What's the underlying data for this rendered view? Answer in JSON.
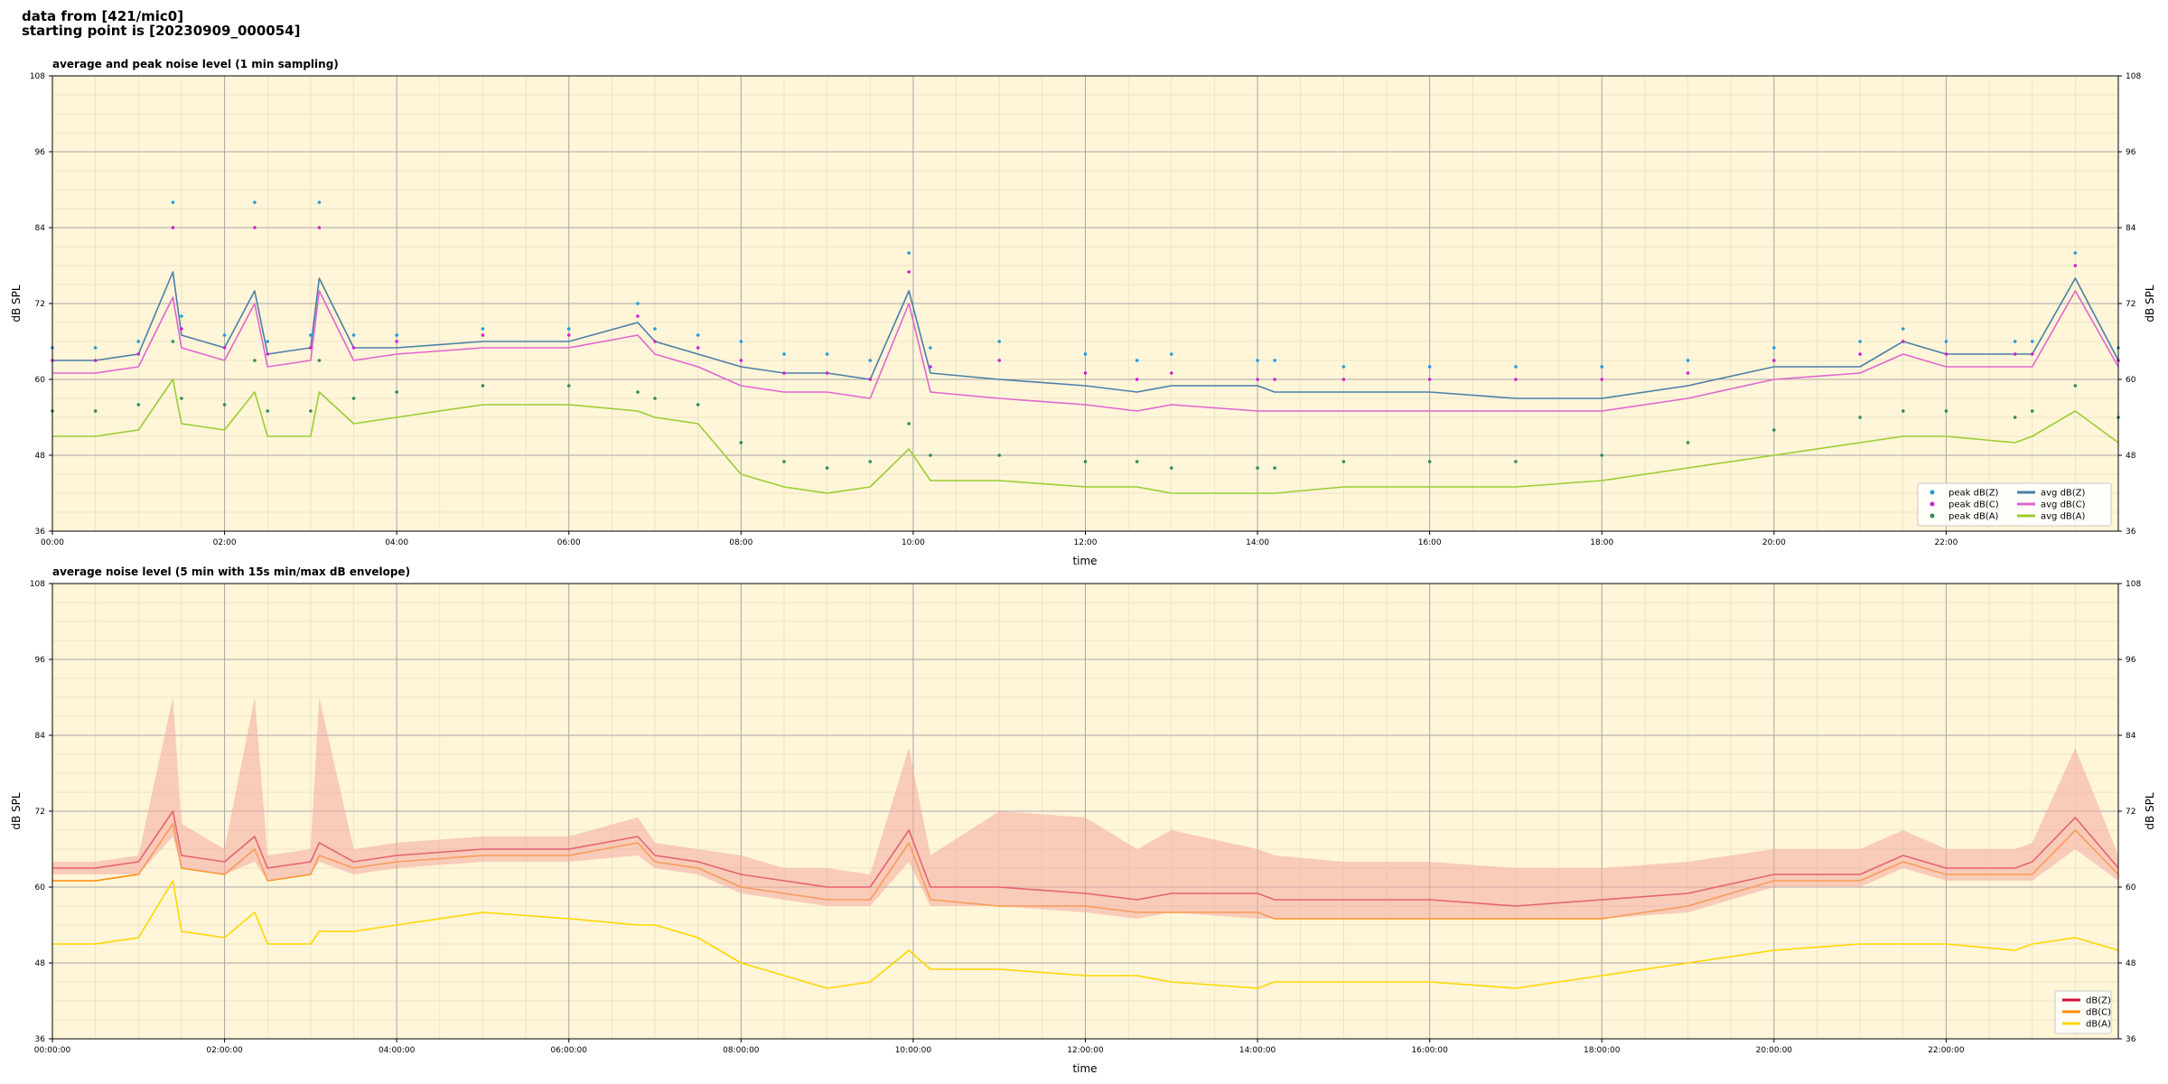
{
  "header": {
    "source_line": "data from [421/mic0]",
    "start_line": "starting point is [20230909_000054]"
  },
  "chart_data": [
    {
      "type": "line",
      "title": "average and peak noise level (1 min sampling)",
      "xlabel": "time",
      "ylabel": "dB SPL",
      "xlim": [
        0,
        24
      ],
      "ylim": [
        36,
        108
      ],
      "x_ticks": [
        0,
        2,
        4,
        6,
        8,
        10,
        12,
        14,
        16,
        18,
        20,
        22
      ],
      "x_ticklabels": [
        "00:00",
        "02:00",
        "04:00",
        "06:00",
        "08:00",
        "10:00",
        "12:00",
        "14:00",
        "16:00",
        "18:00",
        "20:00",
        "22:00"
      ],
      "y_ticks": [
        36,
        48,
        60,
        72,
        84,
        96,
        108
      ],
      "grid": true,
      "background": "#fff5d8",
      "legend_position": "bottom-right",
      "x": [
        0.0,
        0.5,
        1.0,
        1.4,
        1.5,
        2.0,
        2.35,
        2.5,
        3.0,
        3.1,
        3.5,
        4.0,
        5.0,
        6.0,
        6.8,
        7.0,
        7.5,
        8.0,
        8.5,
        9.0,
        9.5,
        9.95,
        10.2,
        11.0,
        12.0,
        12.6,
        13.0,
        14.0,
        14.2,
        15.0,
        16.0,
        17.0,
        18.0,
        19.0,
        20.0,
        21.0,
        21.5,
        22.0,
        22.8,
        23.0,
        23.5,
        24.0
      ],
      "series": [
        {
          "name": "avg dB(Z)",
          "kind": "line",
          "color": "#4a7fa8",
          "values": [
            63,
            63,
            64,
            77,
            67,
            65,
            74,
            64,
            65,
            76,
            65,
            65,
            66,
            66,
            69,
            66,
            64,
            62,
            61,
            61,
            60,
            74,
            61,
            60,
            59,
            58,
            59,
            59,
            58,
            58,
            58,
            57,
            57,
            59,
            62,
            62,
            66,
            64,
            64,
            64,
            76,
            63
          ]
        },
        {
          "name": "avg dB(C)",
          "kind": "line",
          "color": "#e066d0",
          "values": [
            61,
            61,
            62,
            73,
            65,
            63,
            72,
            62,
            63,
            74,
            63,
            64,
            65,
            65,
            67,
            64,
            62,
            59,
            58,
            58,
            57,
            72,
            58,
            57,
            56,
            55,
            56,
            55,
            55,
            55,
            55,
            55,
            55,
            57,
            60,
            61,
            64,
            62,
            62,
            62,
            74,
            62
          ]
        },
        {
          "name": "avg dB(A)",
          "kind": "line",
          "color": "#9acd32",
          "values": [
            51,
            51,
            52,
            60,
            53,
            52,
            58,
            51,
            51,
            58,
            53,
            54,
            56,
            56,
            55,
            54,
            53,
            45,
            43,
            42,
            43,
            49,
            44,
            44,
            43,
            43,
            42,
            42,
            42,
            43,
            43,
            43,
            44,
            46,
            48,
            50,
            51,
            51,
            50,
            51,
            55,
            50
          ]
        },
        {
          "name": "peak dB(Z)",
          "kind": "scatter",
          "color": "#1f9be0",
          "values": [
            65,
            65,
            66,
            88,
            70,
            67,
            88,
            66,
            67,
            88,
            67,
            67,
            68,
            68,
            72,
            68,
            67,
            66,
            64,
            64,
            63,
            80,
            65,
            66,
            64,
            63,
            64,
            63,
            63,
            62,
            62,
            62,
            62,
            63,
            65,
            66,
            68,
            66,
            66,
            66,
            80,
            65
          ]
        },
        {
          "name": "peak dB(C)",
          "kind": "scatter",
          "color": "#d11fd1",
          "values": [
            63,
            63,
            64,
            84,
            68,
            65,
            84,
            64,
            65,
            84,
            65,
            66,
            67,
            67,
            70,
            66,
            65,
            63,
            61,
            61,
            60,
            77,
            62,
            63,
            61,
            60,
            61,
            60,
            60,
            60,
            60,
            60,
            60,
            61,
            63,
            64,
            66,
            64,
            64,
            64,
            78,
            63
          ]
        },
        {
          "name": "peak dB(A)",
          "kind": "scatter",
          "color": "#2e8b57",
          "values": [
            55,
            55,
            56,
            66,
            57,
            56,
            63,
            55,
            55,
            63,
            57,
            58,
            59,
            59,
            58,
            57,
            56,
            50,
            47,
            46,
            47,
            53,
            48,
            48,
            47,
            47,
            46,
            46,
            46,
            47,
            47,
            47,
            48,
            50,
            52,
            54,
            55,
            55,
            54,
            55,
            59,
            54
          ]
        }
      ],
      "legend_entries": [
        {
          "label": "peak dB(Z)",
          "kind": "scatter",
          "color": "#1f9be0"
        },
        {
          "label": "peak dB(C)",
          "kind": "scatter",
          "color": "#d11fd1"
        },
        {
          "label": "peak dB(A)",
          "kind": "scatter",
          "color": "#2e8b57"
        },
        {
          "label": "avg dB(Z)",
          "kind": "line",
          "color": "#4a7fa8"
        },
        {
          "label": "avg dB(C)",
          "kind": "line",
          "color": "#e066d0"
        },
        {
          "label": "avg dB(A)",
          "kind": "line",
          "color": "#9acd32"
        }
      ]
    },
    {
      "type": "line",
      "title": "average noise level (5 min with 15s min/max dB envelope)",
      "xlabel": "time",
      "ylabel": "dB SPL",
      "xlim": [
        0,
        24
      ],
      "ylim": [
        36,
        108
      ],
      "x_ticks": [
        0,
        2,
        4,
        6,
        8,
        10,
        12,
        14,
        16,
        18,
        20,
        22
      ],
      "x_ticklabels": [
        "00:00:00",
        "02:00:00",
        "04:00:00",
        "06:00:00",
        "08:00:00",
        "10:00:00",
        "12:00:00",
        "14:00:00",
        "16:00:00",
        "18:00:00",
        "20:00:00",
        "22:00:00"
      ],
      "y_ticks": [
        36,
        48,
        60,
        72,
        84,
        96,
        108
      ],
      "grid": true,
      "background": "#fff5d8",
      "legend_position": "bottom-right",
      "x": [
        0.0,
        0.5,
        1.0,
        1.4,
        1.5,
        2.0,
        2.35,
        2.5,
        3.0,
        3.1,
        3.5,
        4.0,
        5.0,
        6.0,
        6.8,
        7.0,
        7.5,
        8.0,
        8.5,
        9.0,
        9.5,
        9.95,
        10.2,
        11.0,
        12.0,
        12.6,
        13.0,
        14.0,
        14.2,
        15.0,
        16.0,
        17.0,
        18.0,
        19.0,
        20.0,
        21.0,
        21.5,
        22.0,
        22.8,
        23.0,
        23.5,
        24.0
      ],
      "series": [
        {
          "name": "dB(Z)",
          "kind": "line",
          "color": "#d0103a",
          "values": [
            63,
            63,
            64,
            72,
            65,
            64,
            68,
            63,
            64,
            67,
            64,
            65,
            66,
            66,
            68,
            65,
            64,
            62,
            61,
            60,
            60,
            69,
            60,
            60,
            59,
            58,
            59,
            59,
            58,
            58,
            58,
            57,
            58,
            59,
            62,
            62,
            65,
            63,
            63,
            64,
            71,
            63
          ]
        },
        {
          "name": "dB(C)",
          "kind": "line",
          "color": "#ff8c00",
          "values": [
            61,
            61,
            62,
            70,
            63,
            62,
            66,
            61,
            62,
            65,
            63,
            64,
            65,
            65,
            67,
            64,
            63,
            60,
            59,
            58,
            58,
            67,
            58,
            57,
            57,
            56,
            56,
            56,
            55,
            55,
            55,
            55,
            55,
            57,
            61,
            61,
            64,
            62,
            62,
            62,
            69,
            62
          ]
        },
        {
          "name": "dB(A)",
          "kind": "line",
          "color": "#ffd700",
          "values": [
            51,
            51,
            52,
            61,
            53,
            52,
            56,
            51,
            51,
            53,
            53,
            54,
            56,
            55,
            54,
            54,
            52,
            48,
            46,
            44,
            45,
            50,
            47,
            47,
            46,
            46,
            45,
            44,
            45,
            45,
            45,
            44,
            46,
            48,
            50,
            51,
            51,
            51,
            50,
            51,
            52,
            50
          ]
        },
        {
          "name": "",
          "kind": "envelope",
          "color": "#f4a8a0",
          "min": [
            62,
            62,
            62,
            68,
            63,
            62,
            64,
            61,
            62,
            64,
            62,
            63,
            64,
            64,
            65,
            63,
            62,
            59,
            58,
            57,
            57,
            64,
            57,
            57,
            56,
            55,
            56,
            55,
            55,
            55,
            55,
            55,
            55,
            56,
            60,
            60,
            63,
            61,
            61,
            61,
            66,
            61
          ],
          "max": [
            64,
            64,
            65,
            90,
            70,
            66,
            90,
            65,
            66,
            90,
            66,
            67,
            68,
            68,
            71,
            67,
            66,
            65,
            63,
            63,
            62,
            82,
            65,
            72,
            71,
            66,
            69,
            66,
            65,
            64,
            64,
            63,
            63,
            64,
            66,
            66,
            69,
            66,
            66,
            67,
            82,
            65
          ]
        }
      ],
      "legend_entries": [
        {
          "label": "dB(Z)",
          "kind": "line",
          "color": "#d0103a"
        },
        {
          "label": "dB(C)",
          "kind": "line",
          "color": "#ff8c00"
        },
        {
          "label": "dB(A)",
          "kind": "line",
          "color": "#ffd700"
        }
      ]
    }
  ]
}
